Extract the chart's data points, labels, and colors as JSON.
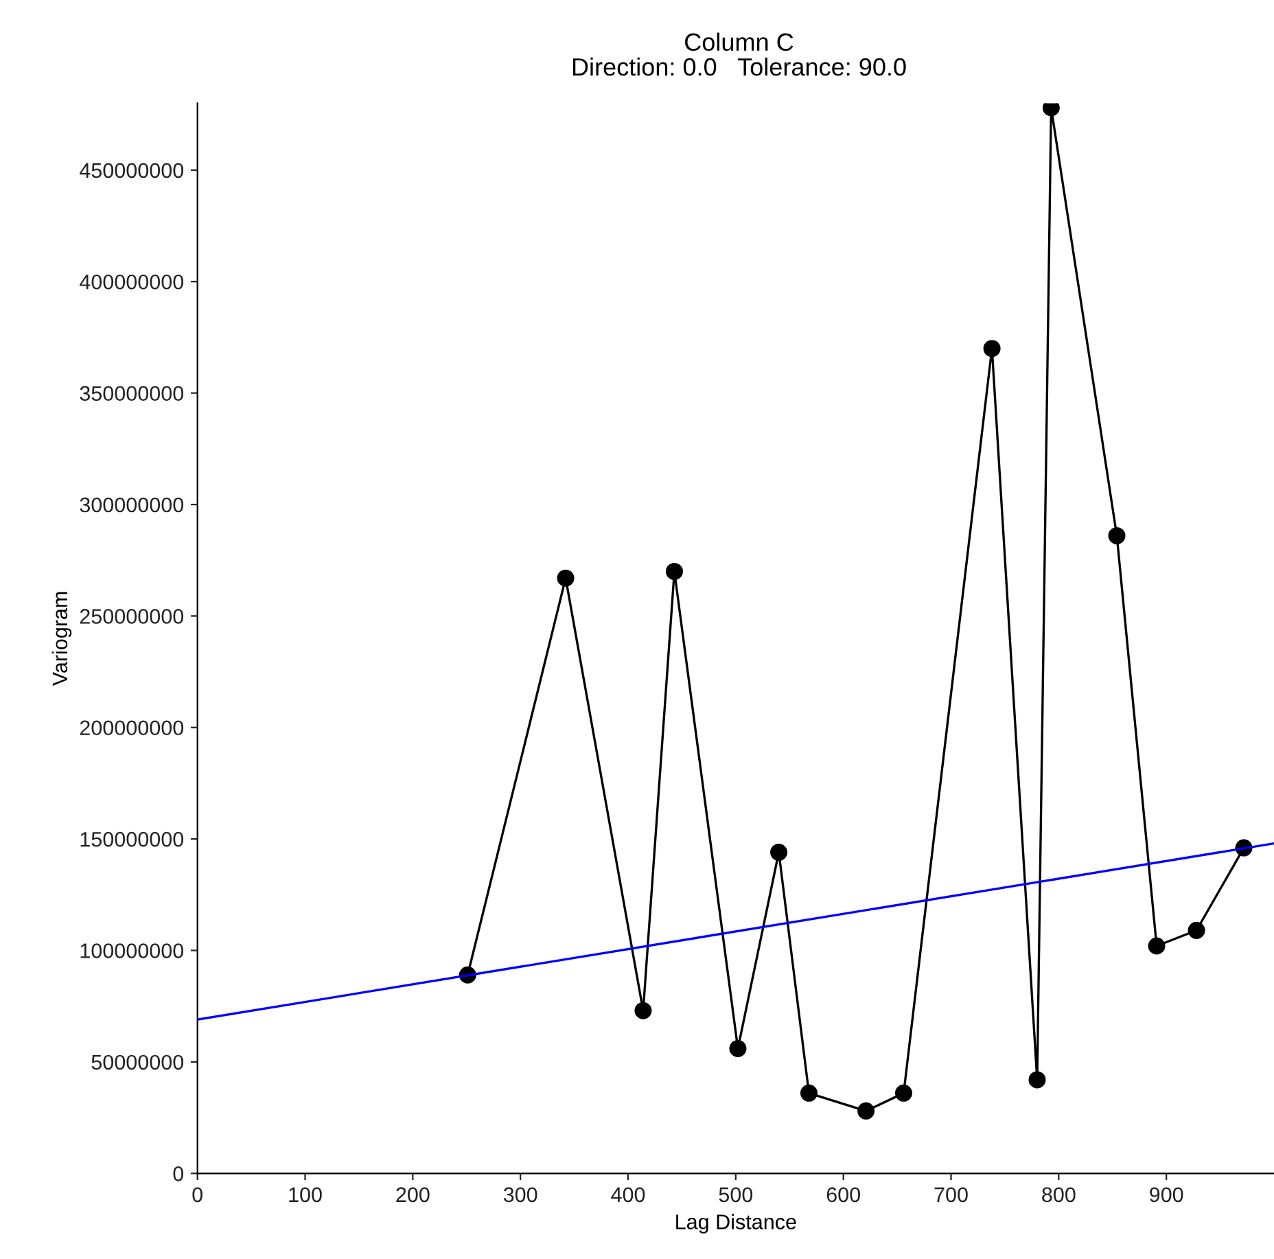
{
  "chart_data": {
    "type": "line",
    "title": "Column C",
    "subtitle": "Direction: 0.0   Tolerance: 90.0",
    "xlabel": "Lag Distance",
    "ylabel": "Variogram",
    "series": [
      {
        "color": "#000000",
        "marker": "circle",
        "x": [
          251,
          342,
          414,
          443,
          502,
          540,
          568,
          621,
          656,
          738,
          780,
          793,
          854,
          891,
          928,
          972
        ],
        "values": [
          89000000,
          267000000,
          73000000,
          270000000,
          56000000,
          144000000,
          36000000,
          28000000,
          36000000,
          370000000,
          42000000,
          478000000,
          286000000,
          102000000,
          109000000,
          146000000
        ]
      },
      {
        "color": "#0000ff",
        "marker": "none",
        "x": [
          0,
          1000
        ],
        "values": [
          69000000,
          148000000
        ]
      }
    ],
    "xlim": [
      0,
      1000
    ],
    "ylim": [
      0,
      480000000
    ],
    "xticks": [
      0,
      100,
      200,
      300,
      400,
      500,
      600,
      700,
      800,
      900
    ],
    "yticks": [
      0,
      50000000,
      100000000,
      150000000,
      200000000,
      250000000,
      300000000,
      350000000,
      400000000,
      450000000
    ],
    "grid": false,
    "legend": false
  }
}
